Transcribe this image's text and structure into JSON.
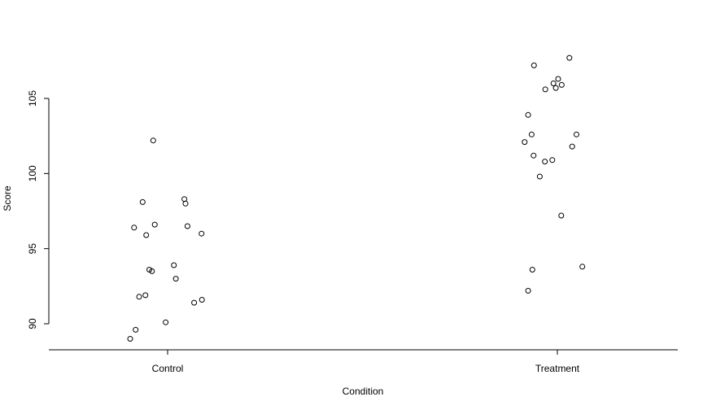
{
  "chart_data": {
    "type": "scatter",
    "title": "",
    "xlabel": "Condition",
    "ylabel": "Score",
    "categories": [
      "Control",
      "Treatment"
    ],
    "ylim": [
      88.3,
      108.3
    ],
    "yticks": [
      90,
      95,
      100,
      105
    ],
    "grid": false,
    "legend": "none",
    "point_style": "open-circle",
    "points": [
      {
        "group": "Control",
        "x": 0.963,
        "y": 102.2
      },
      {
        "group": "Control",
        "x": 1.043,
        "y": 98.3
      },
      {
        "group": "Control",
        "x": 0.936,
        "y": 98.1
      },
      {
        "group": "Control",
        "x": 1.046,
        "y": 98.0
      },
      {
        "group": "Control",
        "x": 0.914,
        "y": 96.4
      },
      {
        "group": "Control",
        "x": 0.967,
        "y": 96.6
      },
      {
        "group": "Control",
        "x": 1.051,
        "y": 96.5
      },
      {
        "group": "Control",
        "x": 1.087,
        "y": 96.0
      },
      {
        "group": "Control",
        "x": 0.945,
        "y": 95.9
      },
      {
        "group": "Control",
        "x": 1.016,
        "y": 93.9
      },
      {
        "group": "Control",
        "x": 0.953,
        "y": 93.6
      },
      {
        "group": "Control",
        "x": 0.96,
        "y": 93.5
      },
      {
        "group": "Control",
        "x": 1.021,
        "y": 93.0
      },
      {
        "group": "Control",
        "x": 0.943,
        "y": 91.9
      },
      {
        "group": "Control",
        "x": 0.927,
        "y": 91.8
      },
      {
        "group": "Control",
        "x": 1.088,
        "y": 91.6
      },
      {
        "group": "Control",
        "x": 1.068,
        "y": 91.4
      },
      {
        "group": "Control",
        "x": 0.995,
        "y": 90.1
      },
      {
        "group": "Control",
        "x": 0.918,
        "y": 89.6
      },
      {
        "group": "Control",
        "x": 0.904,
        "y": 89.0
      },
      {
        "group": "Treatment",
        "x": 2.031,
        "y": 107.7
      },
      {
        "group": "Treatment",
        "x": 1.94,
        "y": 107.2
      },
      {
        "group": "Treatment",
        "x": 2.002,
        "y": 106.3
      },
      {
        "group": "Treatment",
        "x": 1.99,
        "y": 106.0
      },
      {
        "group": "Treatment",
        "x": 2.011,
        "y": 105.9
      },
      {
        "group": "Treatment",
        "x": 1.996,
        "y": 105.7
      },
      {
        "group": "Treatment",
        "x": 1.969,
        "y": 105.6
      },
      {
        "group": "Treatment",
        "x": 1.925,
        "y": 103.9
      },
      {
        "group": "Treatment",
        "x": 2.049,
        "y": 102.6
      },
      {
        "group": "Treatment",
        "x": 1.934,
        "y": 102.6
      },
      {
        "group": "Treatment",
        "x": 1.916,
        "y": 102.1
      },
      {
        "group": "Treatment",
        "x": 2.038,
        "y": 101.8
      },
      {
        "group": "Treatment",
        "x": 1.939,
        "y": 101.2
      },
      {
        "group": "Treatment",
        "x": 1.987,
        "y": 100.9
      },
      {
        "group": "Treatment",
        "x": 1.968,
        "y": 100.8
      },
      {
        "group": "Treatment",
        "x": 1.955,
        "y": 99.8
      },
      {
        "group": "Treatment",
        "x": 2.01,
        "y": 97.2
      },
      {
        "group": "Treatment",
        "x": 2.064,
        "y": 93.8
      },
      {
        "group": "Treatment",
        "x": 1.936,
        "y": 93.6
      },
      {
        "group": "Treatment",
        "x": 1.925,
        "y": 92.2
      }
    ]
  }
}
